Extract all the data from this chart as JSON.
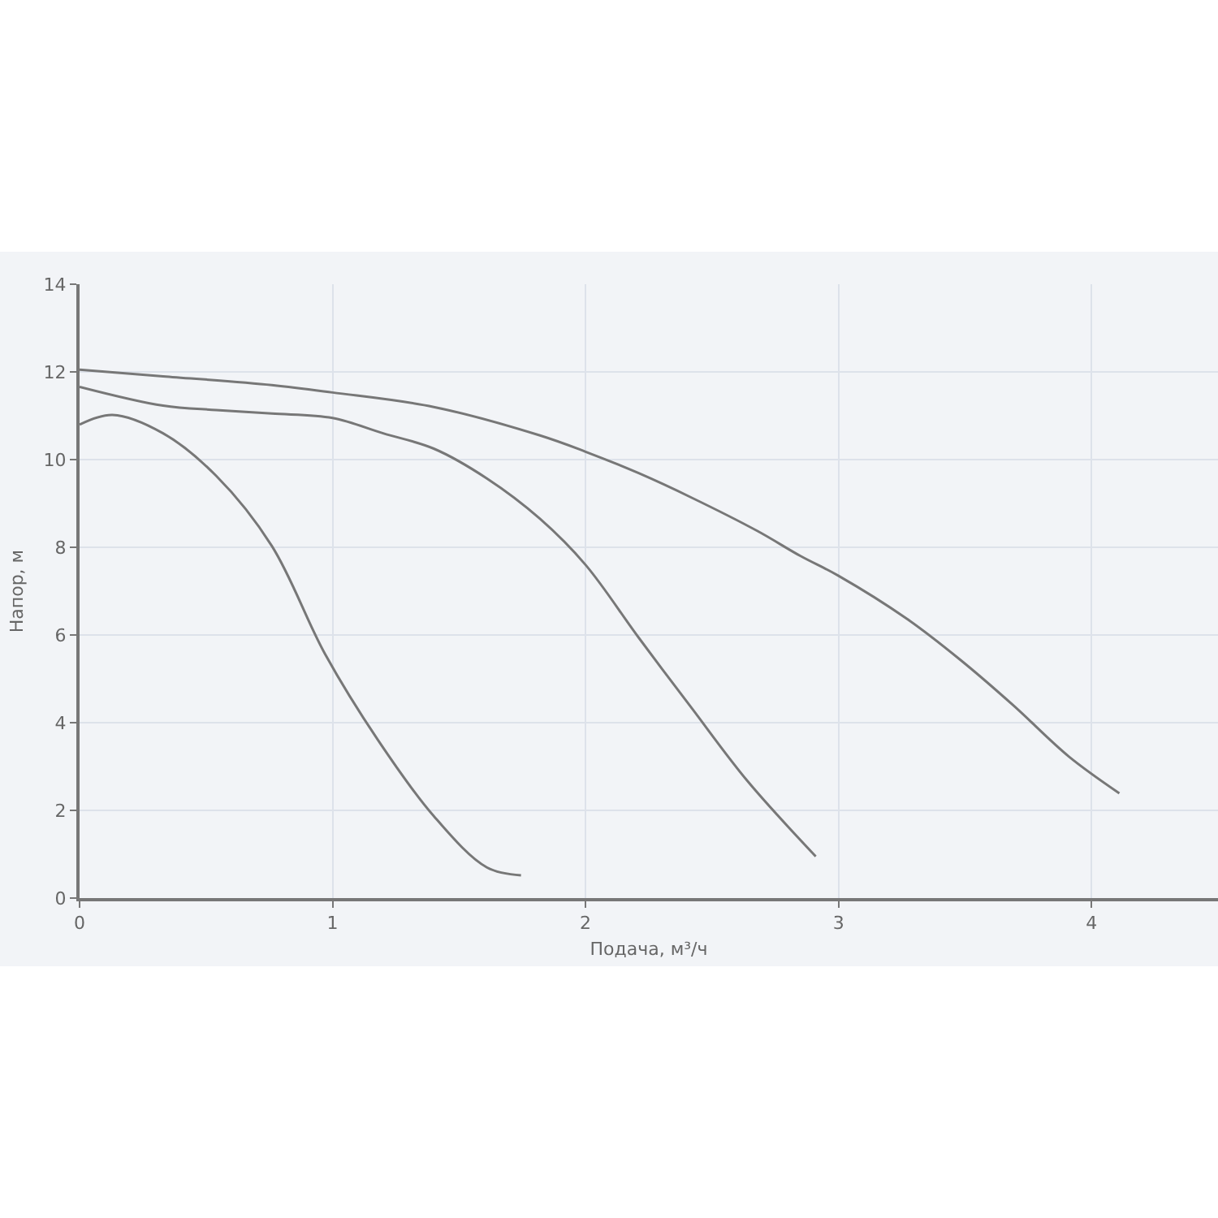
{
  "chart_data": {
    "type": "line",
    "xlabel": "Подача, м³/ч",
    "ylabel": "Напор, м",
    "xlim": [
      0,
      4.5
    ],
    "ylim": [
      0,
      14
    ],
    "xticks": [
      0,
      1,
      2,
      3,
      4
    ],
    "yticks": [
      0,
      2,
      4,
      6,
      8,
      10,
      12,
      14
    ],
    "grid": true,
    "marker": "none",
    "line_style": "solid",
    "series": [
      {
        "color": "#777777",
        "x": [
          0,
          0.13,
          0.33,
          0.54,
          0.76,
          0.97,
          1.18,
          1.4,
          1.61,
          1.745
        ],
        "values": [
          10.8,
          11.02,
          10.6,
          9.63,
          8.03,
          5.57,
          3.6,
          1.87,
          0.7,
          0.52
        ]
      },
      {
        "color": "#777777",
        "x": [
          0,
          0.33,
          0.54,
          0.76,
          1.0,
          1.2,
          1.4,
          1.61,
          1.82,
          2.0,
          2.21,
          2.42,
          2.64,
          2.91
        ],
        "values": [
          11.66,
          11.23,
          11.13,
          11.05,
          10.95,
          10.6,
          10.25,
          9.57,
          8.65,
          7.6,
          5.94,
          4.33,
          2.67,
          0.95
        ]
      },
      {
        "color": "#777777",
        "x": [
          0,
          0.33,
          0.76,
          1.0,
          1.4,
          1.82,
          2.0,
          2.21,
          2.42,
          2.68,
          2.85,
          3.0,
          3.27,
          3.48,
          3.69,
          3.91,
          4.11
        ],
        "values": [
          12.05,
          11.9,
          11.7,
          11.53,
          11.2,
          10.55,
          10.18,
          9.69,
          9.13,
          8.37,
          7.8,
          7.35,
          6.37,
          5.44,
          4.4,
          3.23,
          2.39
        ]
      }
    ]
  }
}
